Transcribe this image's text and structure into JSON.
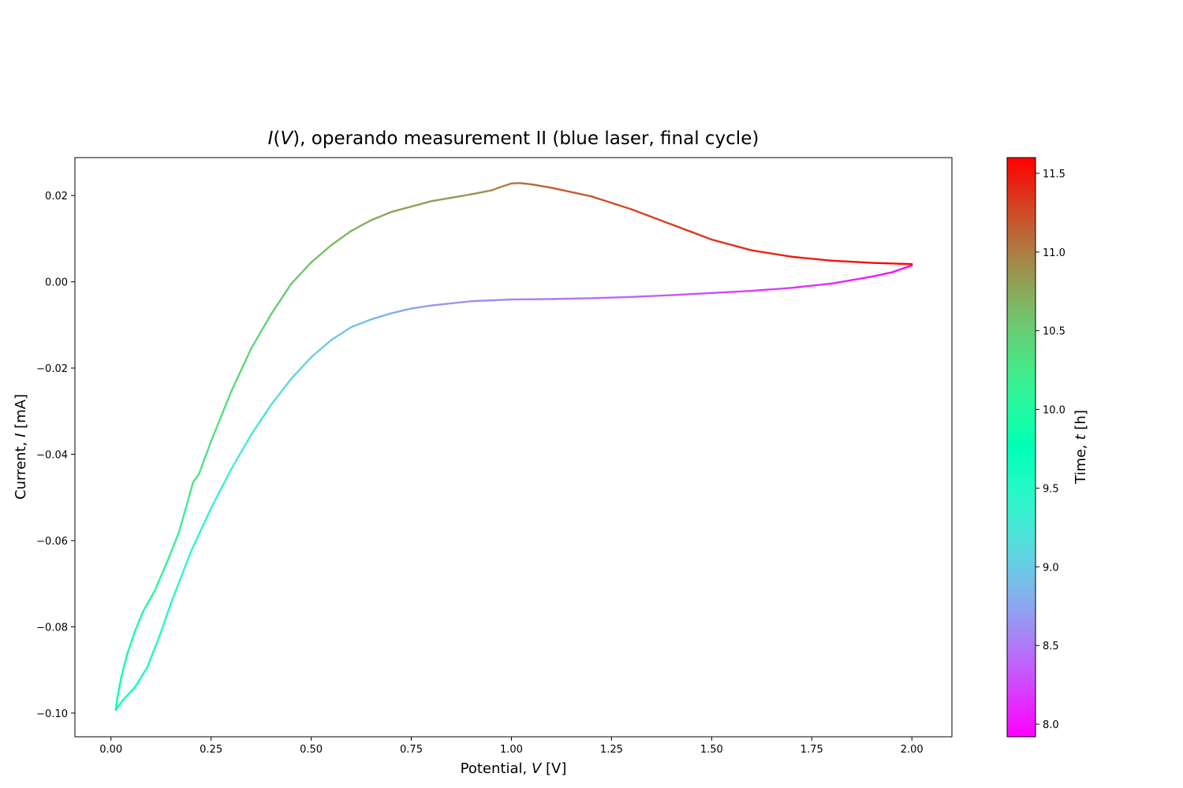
{
  "chart_data": {
    "type": "scatter",
    "title": {
      "var_open": "I",
      "mid_open": "(",
      "var_inner": "V",
      "rest": "), operando measurement II (blue laser, final cycle)"
    },
    "xlabel": {
      "prefix": "Potential, ",
      "var": "V",
      "unit": " [V]"
    },
    "ylabel": {
      "prefix": "Current, ",
      "var": "I",
      "unit": " [mA]"
    },
    "colorbar_label": {
      "prefix": "Time, ",
      "var": "t",
      "unit": " [h]"
    },
    "xlim": [
      -0.09,
      2.1
    ],
    "ylim": [
      -0.1055,
      0.0288
    ],
    "x_ticks": [
      0.0,
      0.25,
      0.5,
      0.75,
      1.0,
      1.25,
      1.5,
      1.75,
      2.0
    ],
    "x_tick_labels": [
      "0.00",
      "0.25",
      "0.50",
      "0.75",
      "1.00",
      "1.25",
      "1.50",
      "1.75",
      "2.00"
    ],
    "y_ticks": [
      0.02,
      0.0,
      -0.02,
      -0.04,
      -0.06,
      -0.08,
      -0.1
    ],
    "y_tick_labels": [
      "0.02",
      "0.00",
      "−0.02",
      "−0.04",
      "−0.06",
      "−0.08",
      "−0.10"
    ],
    "colorbar": {
      "range": [
        7.92,
        11.6
      ],
      "ticks": [
        8.0,
        8.5,
        9.0,
        9.5,
        10.0,
        10.5,
        11.0,
        11.5
      ],
      "tick_labels": [
        "8.0",
        "8.5",
        "9.0",
        "9.5",
        "10.0",
        "10.5",
        "11.0",
        "11.5"
      ],
      "colormap": "rainbow"
    },
    "series": [
      {
        "segment": "cathodic-sweep",
        "t_range": [
          7.92,
          9.76
        ],
        "points": [
          [
            2.0,
            0.0038
          ],
          [
            1.95,
            0.0022
          ],
          [
            1.9,
            0.0012
          ],
          [
            1.8,
            -0.0004
          ],
          [
            1.7,
            -0.0014
          ],
          [
            1.6,
            -0.0021
          ],
          [
            1.5,
            -0.0026
          ],
          [
            1.4,
            -0.0031
          ],
          [
            1.3,
            -0.0035
          ],
          [
            1.2,
            -0.0038
          ],
          [
            1.1,
            -0.004
          ],
          [
            1.0,
            -0.0041
          ],
          [
            0.9,
            -0.0045
          ],
          [
            0.8,
            -0.0055
          ],
          [
            0.75,
            -0.0062
          ],
          [
            0.7,
            -0.0073
          ],
          [
            0.65,
            -0.0087
          ],
          [
            0.6,
            -0.0105
          ],
          [
            0.55,
            -0.0135
          ],
          [
            0.5,
            -0.0175
          ],
          [
            0.45,
            -0.0225
          ],
          [
            0.4,
            -0.0285
          ],
          [
            0.35,
            -0.0355
          ],
          [
            0.3,
            -0.0435
          ],
          [
            0.25,
            -0.0525
          ],
          [
            0.2,
            -0.0625
          ],
          [
            0.15,
            -0.0745
          ],
          [
            0.12,
            -0.0825
          ],
          [
            0.09,
            -0.0895
          ],
          [
            0.06,
            -0.094
          ],
          [
            0.03,
            -0.097
          ],
          [
            0.012,
            -0.0993
          ]
        ]
      },
      {
        "segment": "anodic-sweep",
        "t_range": [
          9.76,
          11.6
        ],
        "points": [
          [
            0.012,
            -0.0993
          ],
          [
            0.015,
            -0.097
          ],
          [
            0.025,
            -0.092
          ],
          [
            0.04,
            -0.0865
          ],
          [
            0.06,
            -0.081
          ],
          [
            0.08,
            -0.0765
          ],
          [
            0.11,
            -0.0715
          ],
          [
            0.14,
            -0.065
          ],
          [
            0.17,
            -0.058
          ],
          [
            0.19,
            -0.0515
          ],
          [
            0.205,
            -0.0465
          ],
          [
            0.22,
            -0.0445
          ],
          [
            0.25,
            -0.037
          ],
          [
            0.3,
            -0.0255
          ],
          [
            0.35,
            -0.0155
          ],
          [
            0.4,
            -0.0075
          ],
          [
            0.45,
            -0.0005
          ],
          [
            0.5,
            0.0045
          ],
          [
            0.55,
            0.0085
          ],
          [
            0.6,
            0.0118
          ],
          [
            0.65,
            0.0143
          ],
          [
            0.7,
            0.0162
          ],
          [
            0.8,
            0.0187
          ],
          [
            0.9,
            0.0203
          ],
          [
            0.95,
            0.0212
          ],
          [
            0.98,
            0.0222
          ],
          [
            1.0,
            0.0228
          ],
          [
            1.02,
            0.0229
          ],
          [
            1.05,
            0.0226
          ],
          [
            1.1,
            0.0218
          ],
          [
            1.2,
            0.0198
          ],
          [
            1.3,
            0.0168
          ],
          [
            1.4,
            0.0133
          ],
          [
            1.5,
            0.0098
          ],
          [
            1.6,
            0.0073
          ],
          [
            1.7,
            0.0058
          ],
          [
            1.8,
            0.0049
          ],
          [
            1.9,
            0.0044
          ],
          [
            2.0,
            0.0041
          ]
        ]
      }
    ]
  }
}
